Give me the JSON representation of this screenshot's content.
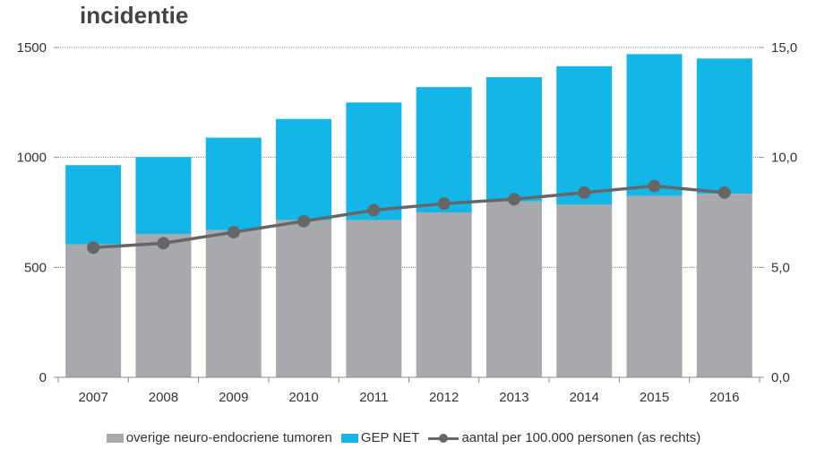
{
  "chart_data": {
    "type": "bar",
    "title": "incidentie",
    "categories": [
      "2007",
      "2008",
      "2009",
      "2010",
      "2011",
      "2012",
      "2013",
      "2014",
      "2015",
      "2016"
    ],
    "stacked": true,
    "series": [
      {
        "name": "overige neuro-endocriene tumoren",
        "type": "bar",
        "axis": "left",
        "color": "#a7a9ac",
        "values": [
          605,
          652,
          670,
          715,
          715,
          750,
          800,
          785,
          825,
          835
        ]
      },
      {
        "name": "GEP NET",
        "type": "bar",
        "axis": "left",
        "color": "#14b6e8",
        "values": [
          360,
          350,
          420,
          460,
          535,
          570,
          565,
          630,
          645,
          615
        ]
      },
      {
        "name": "aantal per 100.000 personen (as rechts)",
        "type": "line",
        "axis": "right",
        "color": "#666666",
        "values": [
          5.9,
          6.1,
          6.6,
          7.1,
          7.6,
          7.9,
          8.1,
          8.4,
          8.7,
          8.4
        ]
      }
    ],
    "y_left": {
      "ylim": [
        0,
        1500
      ],
      "ticks": [
        "0",
        "500",
        "1000",
        "1500"
      ],
      "tick_values": [
        0,
        500,
        1000,
        1500
      ]
    },
    "y_right": {
      "ylim": [
        0,
        15
      ],
      "ticks": [
        "0,0",
        "5,0",
        "10,0",
        "15,0"
      ],
      "tick_values": [
        0,
        5,
        10,
        15
      ]
    },
    "grid": true,
    "legend_position": "bottom"
  }
}
